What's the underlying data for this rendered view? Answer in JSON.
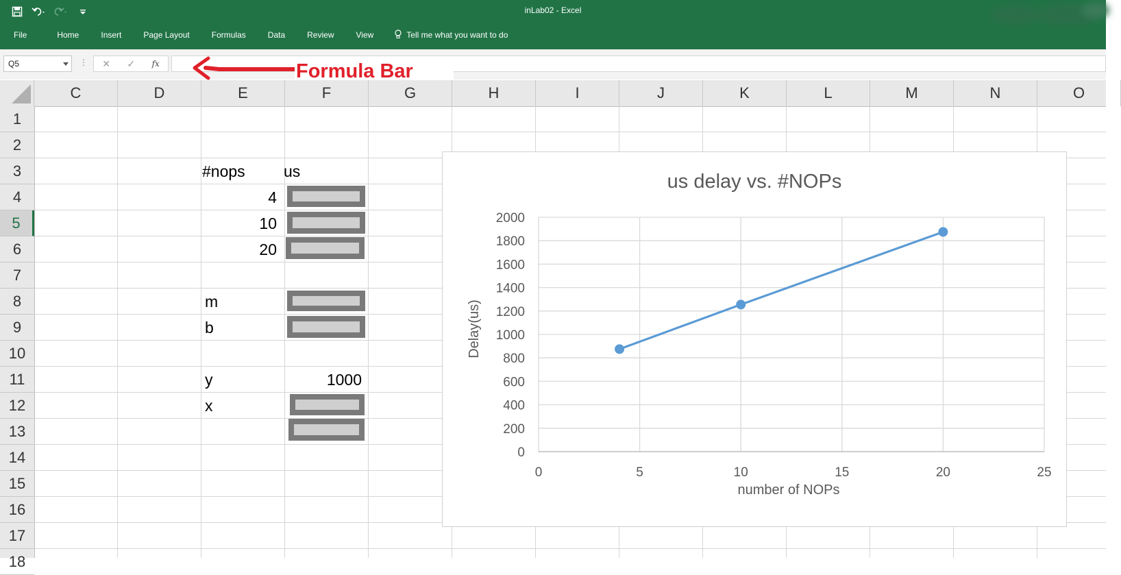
{
  "window": {
    "title": "inLab02  -  Excel"
  },
  "qat": {
    "save_icon": "save-icon",
    "undo_icon": "undo-icon",
    "redo_icon": "redo-icon",
    "customize_icon": "customize-icon"
  },
  "ribbon": {
    "tabs": [
      "File",
      "Home",
      "Insert",
      "Page Layout",
      "Formulas",
      "Data",
      "Review",
      "View"
    ],
    "tellme": "Tell me what you want to do"
  },
  "formula_bar": {
    "name_box": "Q5",
    "cancel_glyph": "✕",
    "enter_glyph": "✓",
    "fx_label": "fx",
    "formula_value": ""
  },
  "annotation": {
    "text": "Formula Bar"
  },
  "columns": [
    "C",
    "D",
    "E",
    "F",
    "G",
    "H",
    "I",
    "J",
    "K",
    "L",
    "M",
    "N",
    "O"
  ],
  "rows": [
    "1",
    "2",
    "3",
    "4",
    "5",
    "6",
    "7",
    "8",
    "9",
    "10",
    "11",
    "12",
    "13",
    "14",
    "15",
    "16",
    "17",
    "18"
  ],
  "active_row": "5",
  "sheet": {
    "E3": "#nops",
    "F3": "us",
    "E4": "4",
    "E5": "10",
    "E6": "20",
    "E8": "m",
    "E9": "b",
    "E11": "y",
    "F11": "1000",
    "E12": "x"
  },
  "colors": {
    "excel_green": "#217346",
    "series": "#5b9bd5",
    "annotation_red": "#e0202a",
    "redact_outer": "#7a7a7a",
    "redact_inner": "#cfcfcf"
  },
  "chart_data": {
    "type": "scatter",
    "title": "us delay vs. #NOPs",
    "xlabel": "number of NOPs",
    "ylabel": "Delay(us)",
    "xlim": [
      0,
      25
    ],
    "ylim": [
      0,
      2000
    ],
    "xticks": [
      0,
      5,
      10,
      15,
      20,
      25
    ],
    "yticks": [
      0,
      200,
      400,
      600,
      800,
      1000,
      1200,
      1400,
      1600,
      1800,
      2000
    ],
    "grid": true,
    "legend": "none",
    "lines": true,
    "series": [
      {
        "x": [
          4,
          10,
          20
        ],
        "y": [
          875,
          1255,
          1875
        ]
      }
    ]
  }
}
